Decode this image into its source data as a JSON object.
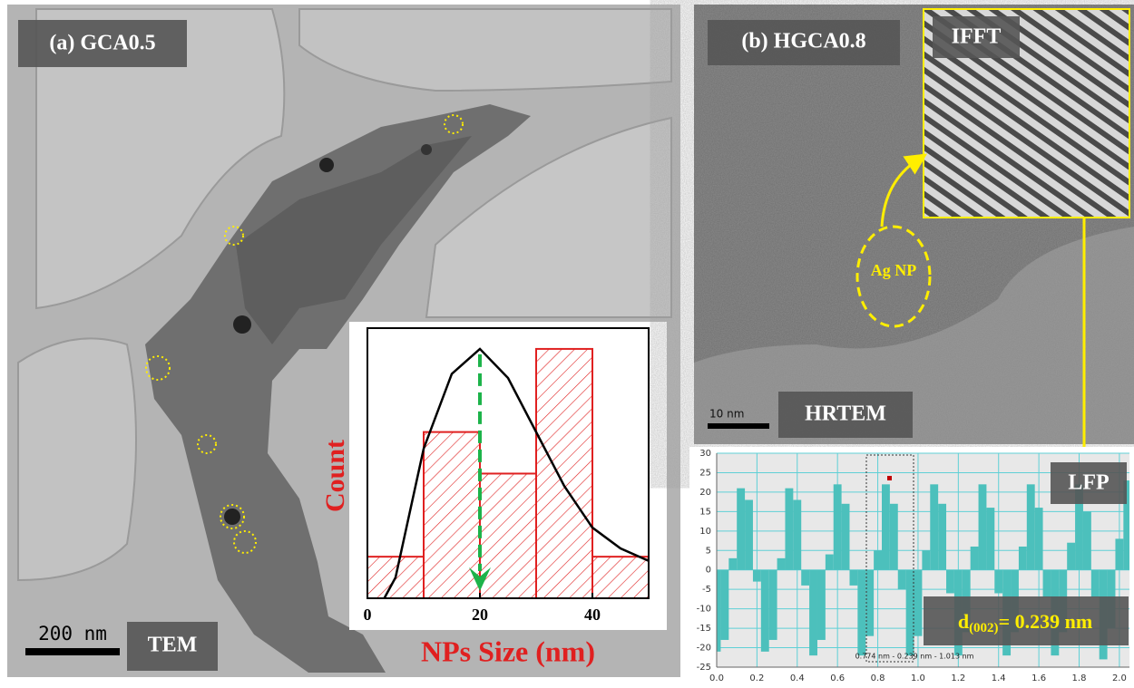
{
  "panel_a": {
    "label": "(a) GCA0.5",
    "scale_bar": "200 nm",
    "mode": "TEM",
    "histogram": {
      "type": "histogram",
      "y_label": "Count",
      "x_label": "NPs Size (nm)",
      "bins": [
        0,
        10,
        20,
        30,
        40,
        50
      ],
      "counts": [
        1,
        4,
        3,
        6,
        1
      ],
      "color": "#e02020",
      "xlim": [
        0,
        50
      ],
      "xticks": [
        0,
        20,
        40
      ],
      "ylim": [
        0,
        6.5
      ],
      "fit": {
        "x": [
          3,
          5,
          10,
          15,
          20,
          25,
          30,
          35,
          40,
          45,
          50
        ],
        "values": [
          0,
          0.5,
          3.6,
          5.4,
          6.0,
          5.3,
          4.0,
          2.7,
          1.7,
          1.2,
          0.9
        ],
        "color": "#000000"
      }
    }
  },
  "panel_b": {
    "label": "(b) HGCA0.8",
    "inset_label": "IFFT",
    "particle_label": "Ag NP",
    "scale_bar": "10 nm",
    "mode": "HRTEM",
    "profile": {
      "type": "bar",
      "label": "LFP",
      "color": "#4cc0bc",
      "x": [
        0,
        0.04,
        0.08,
        0.12,
        0.16,
        0.2,
        0.24,
        0.28,
        0.32,
        0.36,
        0.4,
        0.44,
        0.48,
        0.52,
        0.56,
        0.6,
        0.64,
        0.68,
        0.72,
        0.76,
        0.8,
        0.84,
        0.88,
        0.92,
        0.96,
        1.0,
        1.04,
        1.08,
        1.12,
        1.16,
        1.2,
        1.24,
        1.28,
        1.32,
        1.36,
        1.4,
        1.44,
        1.48,
        1.52,
        1.56,
        1.6,
        1.64,
        1.68,
        1.72,
        1.76,
        1.8,
        1.84,
        1.88,
        1.92,
        1.96,
        2.0,
        2.04
      ],
      "values": [
        -21,
        -18,
        3,
        21,
        18,
        -3,
        -21,
        -18,
        3,
        21,
        18,
        -4,
        -22,
        -18,
        4,
        22,
        17,
        -4,
        -22,
        -17,
        5,
        22,
        17,
        -5,
        -22,
        -17,
        5,
        22,
        17,
        -6,
        -22,
        -16,
        6,
        22,
        16,
        -6,
        -22,
        -16,
        6,
        22,
        16,
        -7,
        -22,
        -16,
        7,
        22,
        15,
        -7,
        -23,
        -15,
        8,
        23
      ],
      "xlim": [
        0,
        2.05
      ],
      "ylim": [
        -25,
        30
      ],
      "xticks": [
        {
          "value": 0,
          "label": "0.0"
        },
        {
          "value": 0.2,
          "label": "0.2"
        },
        {
          "value": 0.4,
          "label": "0.4"
        },
        {
          "value": 0.6,
          "label": "0.6"
        },
        {
          "value": 0.8,
          "label": "0.8"
        },
        {
          "value": 1,
          "label": "1.0"
        },
        {
          "value": 1.2,
          "label": "1.2"
        },
        {
          "value": 1.4,
          "label": "1.4"
        },
        {
          "value": 1.6,
          "label": "1.6"
        },
        {
          "value": 1.8,
          "label": "1.8"
        },
        {
          "value": 2,
          "label": "2.0"
        }
      ],
      "yticks": [
        30,
        25,
        20,
        15,
        10,
        5,
        0,
        -5,
        -10,
        -15,
        -20,
        -25
      ],
      "grid": true,
      "measurement": "0.774 nm - 0.239 nm - 1.013 nm",
      "d_symbol": "d",
      "d_subscript": "(002)",
      "d_value": "= 0.239 nm"
    }
  }
}
